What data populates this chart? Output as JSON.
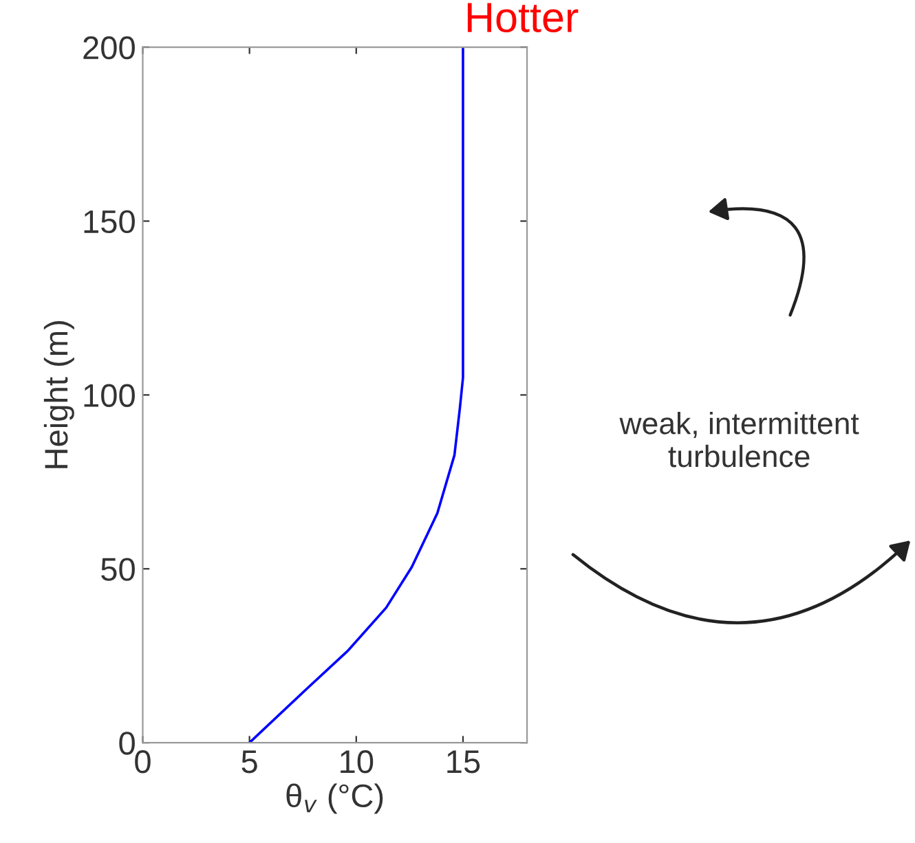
{
  "chart_data": {
    "type": "line",
    "title": "Hotter",
    "xlabel": "θ$_{v}$ (°C)",
    "ylabel": "Height (m)",
    "annotations": [
      "weak, intermittent turbulence"
    ],
    "series": [
      {
        "color": "#0000ff",
        "x": [
          5,
          7.7,
          9.6,
          11.4,
          12.6,
          13.8,
          14.6,
          14.85,
          15,
          15
        ],
        "values": [
          0,
          15.6,
          26.4,
          38.8,
          50.5,
          66,
          82.7,
          96,
          105,
          200
        ]
      }
    ],
    "xlim": [
      0,
      18
    ],
    "ylim": [
      0,
      200
    ],
    "xticks": [
      0,
      5,
      10,
      15
    ],
    "yticks": [
      0,
      50,
      100,
      150,
      200
    ],
    "grid": false,
    "legend": false
  }
}
